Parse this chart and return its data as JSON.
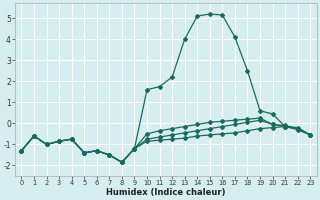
{
  "title": "",
  "xlabel": "Humidex (Indice chaleur)",
  "ylabel": "",
  "bg_color": "#d6eef0",
  "grid_color": "#ffffff",
  "line_color": "#1a6b5e",
  "xlim": [
    -0.5,
    23.5
  ],
  "ylim": [
    -2.5,
    5.7
  ],
  "yticks": [
    -2,
    -1,
    0,
    1,
    2,
    3,
    4,
    5
  ],
  "xticks": [
    0,
    1,
    2,
    3,
    4,
    5,
    6,
    7,
    8,
    9,
    10,
    11,
    12,
    13,
    14,
    15,
    16,
    17,
    18,
    19,
    20,
    21,
    22,
    23
  ],
  "series_x": [
    0,
    1,
    2,
    3,
    4,
    5,
    6,
    7,
    8,
    9,
    10,
    11,
    12,
    13,
    14,
    15,
    16,
    17,
    18,
    19,
    20,
    21,
    22,
    23
  ],
  "series": [
    [
      -1.3,
      -0.6,
      -1.0,
      -0.85,
      -0.75,
      -1.4,
      -1.3,
      -1.5,
      -1.85,
      -1.2,
      -0.85,
      -0.8,
      -0.75,
      -0.7,
      -0.6,
      -0.55,
      -0.5,
      -0.45,
      -0.35,
      -0.25,
      -0.2,
      -0.15,
      -0.2,
      -0.55
    ],
    [
      -1.3,
      -0.6,
      -1.0,
      -0.85,
      -0.75,
      -1.4,
      -1.3,
      -1.5,
      -1.85,
      -1.2,
      -0.5,
      -0.35,
      -0.25,
      -0.15,
      -0.05,
      0.05,
      0.1,
      0.15,
      0.2,
      0.25,
      -0.05,
      -0.1,
      -0.25,
      -0.55
    ],
    [
      -1.3,
      -0.6,
      -1.0,
      -0.85,
      -0.75,
      -1.4,
      -1.3,
      -1.5,
      -1.85,
      -1.2,
      1.6,
      1.75,
      2.2,
      4.0,
      5.1,
      5.2,
      5.15,
      4.1,
      2.5,
      0.6,
      0.45,
      -0.15,
      -0.3,
      -0.55
    ],
    [
      -1.3,
      -0.6,
      -1.0,
      -0.85,
      -0.75,
      -1.4,
      -1.3,
      -1.5,
      -1.85,
      -1.2,
      -0.75,
      -0.65,
      -0.55,
      -0.45,
      -0.35,
      -0.25,
      -0.15,
      -0.05,
      0.05,
      0.15,
      -0.05,
      -0.15,
      -0.25,
      -0.55
    ]
  ]
}
